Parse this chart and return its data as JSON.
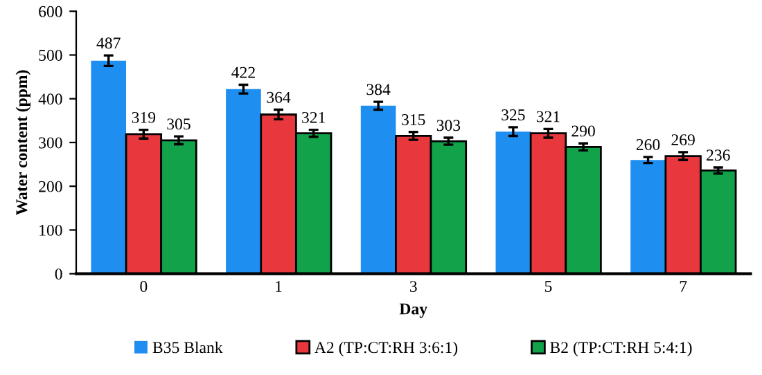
{
  "chart_data": {
    "type": "bar",
    "xlabel": "Day",
    "ylabel": "Water content (ppm)",
    "categories": [
      "0",
      "1",
      "3",
      "5",
      "7"
    ],
    "series": [
      {
        "name": "B35 Blank",
        "color": "#1f8ef1",
        "values": [
          487,
          422,
          384,
          325,
          260
        ],
        "errors": [
          12,
          10,
          9,
          10,
          7
        ]
      },
      {
        "name": "A2 (TP:CT:RH 3:6:1)",
        "color": "#e8383d",
        "values": [
          319,
          364,
          315,
          321,
          269
        ],
        "errors": [
          10,
          11,
          9,
          10,
          9
        ]
      },
      {
        "name": "B2 (TP:CT:RH 5:4:1)",
        "color": "#12a24a",
        "values": [
          305,
          321,
          303,
          290,
          236
        ],
        "errors": [
          9,
          8,
          8,
          8,
          7
        ]
      }
    ],
    "ylim": [
      0,
      600
    ],
    "yticks": [
      0,
      100,
      200,
      300,
      400,
      500,
      600
    ],
    "grid": false,
    "legend": "bottom",
    "data_labels": true
  }
}
